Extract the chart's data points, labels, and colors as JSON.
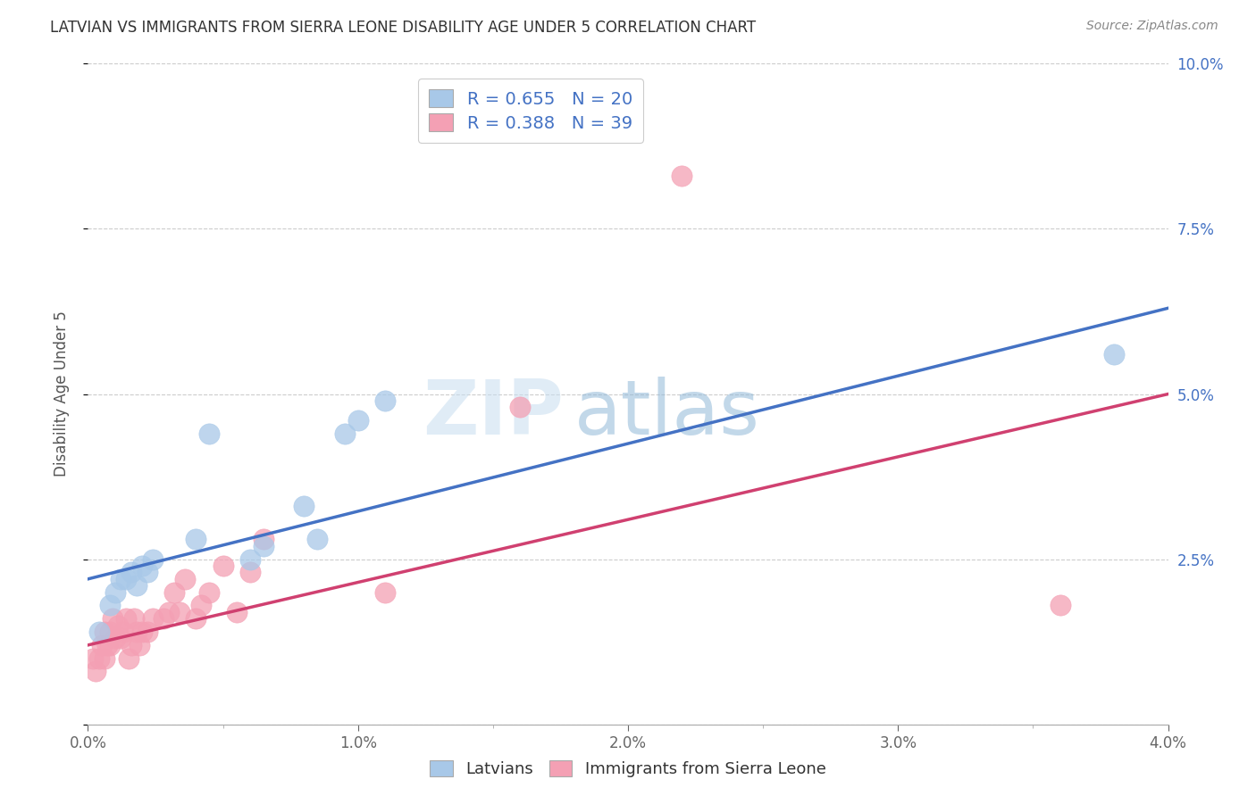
{
  "title": "LATVIAN VS IMMIGRANTS FROM SIERRA LEONE DISABILITY AGE UNDER 5 CORRELATION CHART",
  "source": "Source: ZipAtlas.com",
  "ylabel": "Disability Age Under 5",
  "x_min": 0.0,
  "x_max": 0.04,
  "y_min": 0.0,
  "y_max": 0.1,
  "x_ticks": [
    0.0,
    0.005,
    0.01,
    0.015,
    0.02,
    0.025,
    0.03,
    0.035,
    0.04
  ],
  "x_tick_labels_major": [
    0.0,
    0.01,
    0.02,
    0.03,
    0.04
  ],
  "y_ticks": [
    0.0,
    0.025,
    0.05,
    0.075,
    0.1
  ],
  "y_tick_labels": [
    "",
    "2.5%",
    "5.0%",
    "7.5%",
    "10.0%"
  ],
  "latvian_color": "#a8c8e8",
  "sierra_color": "#f4a0b4",
  "trend_latvian_color": "#4472c4",
  "trend_sierra_color": "#d04070",
  "R_latvian": 0.655,
  "N_latvian": 20,
  "R_sierra": 0.388,
  "N_sierra": 39,
  "legend_label_latvian": "Latvians",
  "legend_label_sierra": "Immigrants from Sierra Leone",
  "latvian_x": [
    0.0004,
    0.0008,
    0.001,
    0.0012,
    0.0014,
    0.0016,
    0.0018,
    0.002,
    0.0022,
    0.0024,
    0.004,
    0.0045,
    0.006,
    0.0065,
    0.008,
    0.0085,
    0.0095,
    0.01,
    0.011,
    0.038
  ],
  "latvian_y": [
    0.014,
    0.018,
    0.02,
    0.022,
    0.022,
    0.023,
    0.021,
    0.024,
    0.023,
    0.025,
    0.028,
    0.044,
    0.025,
    0.027,
    0.033,
    0.028,
    0.044,
    0.046,
    0.049,
    0.056
  ],
  "sierra_x": [
    0.0002,
    0.0003,
    0.0004,
    0.0005,
    0.0006,
    0.0006,
    0.0007,
    0.0008,
    0.0008,
    0.0009,
    0.001,
    0.0011,
    0.0012,
    0.0013,
    0.0014,
    0.0015,
    0.0016,
    0.0017,
    0.0018,
    0.0019,
    0.002,
    0.0022,
    0.0024,
    0.0028,
    0.003,
    0.0032,
    0.0034,
    0.0036,
    0.004,
    0.0042,
    0.0045,
    0.005,
    0.0055,
    0.006,
    0.0065,
    0.011,
    0.016,
    0.022,
    0.036
  ],
  "sierra_y": [
    0.01,
    0.008,
    0.01,
    0.012,
    0.01,
    0.014,
    0.012,
    0.012,
    0.014,
    0.016,
    0.013,
    0.015,
    0.013,
    0.014,
    0.016,
    0.01,
    0.012,
    0.016,
    0.014,
    0.012,
    0.014,
    0.014,
    0.016,
    0.016,
    0.017,
    0.02,
    0.017,
    0.022,
    0.016,
    0.018,
    0.02,
    0.024,
    0.017,
    0.023,
    0.028,
    0.02,
    0.048,
    0.083,
    0.018
  ],
  "trend_latvian_x0": 0.0,
  "trend_latvian_y0": 0.022,
  "trend_latvian_x1": 0.04,
  "trend_latvian_y1": 0.063,
  "trend_sierra_x0": 0.0,
  "trend_sierra_y0": 0.012,
  "trend_sierra_x1": 0.04,
  "trend_sierra_y1": 0.05,
  "watermark_zip": "ZIP",
  "watermark_atlas": "atlas",
  "background_color": "#ffffff",
  "grid_color": "#cccccc",
  "title_color": "#333333",
  "source_color": "#888888",
  "axis_label_color": "#555555",
  "tick_color": "#666666",
  "right_tick_color": "#4472c4"
}
